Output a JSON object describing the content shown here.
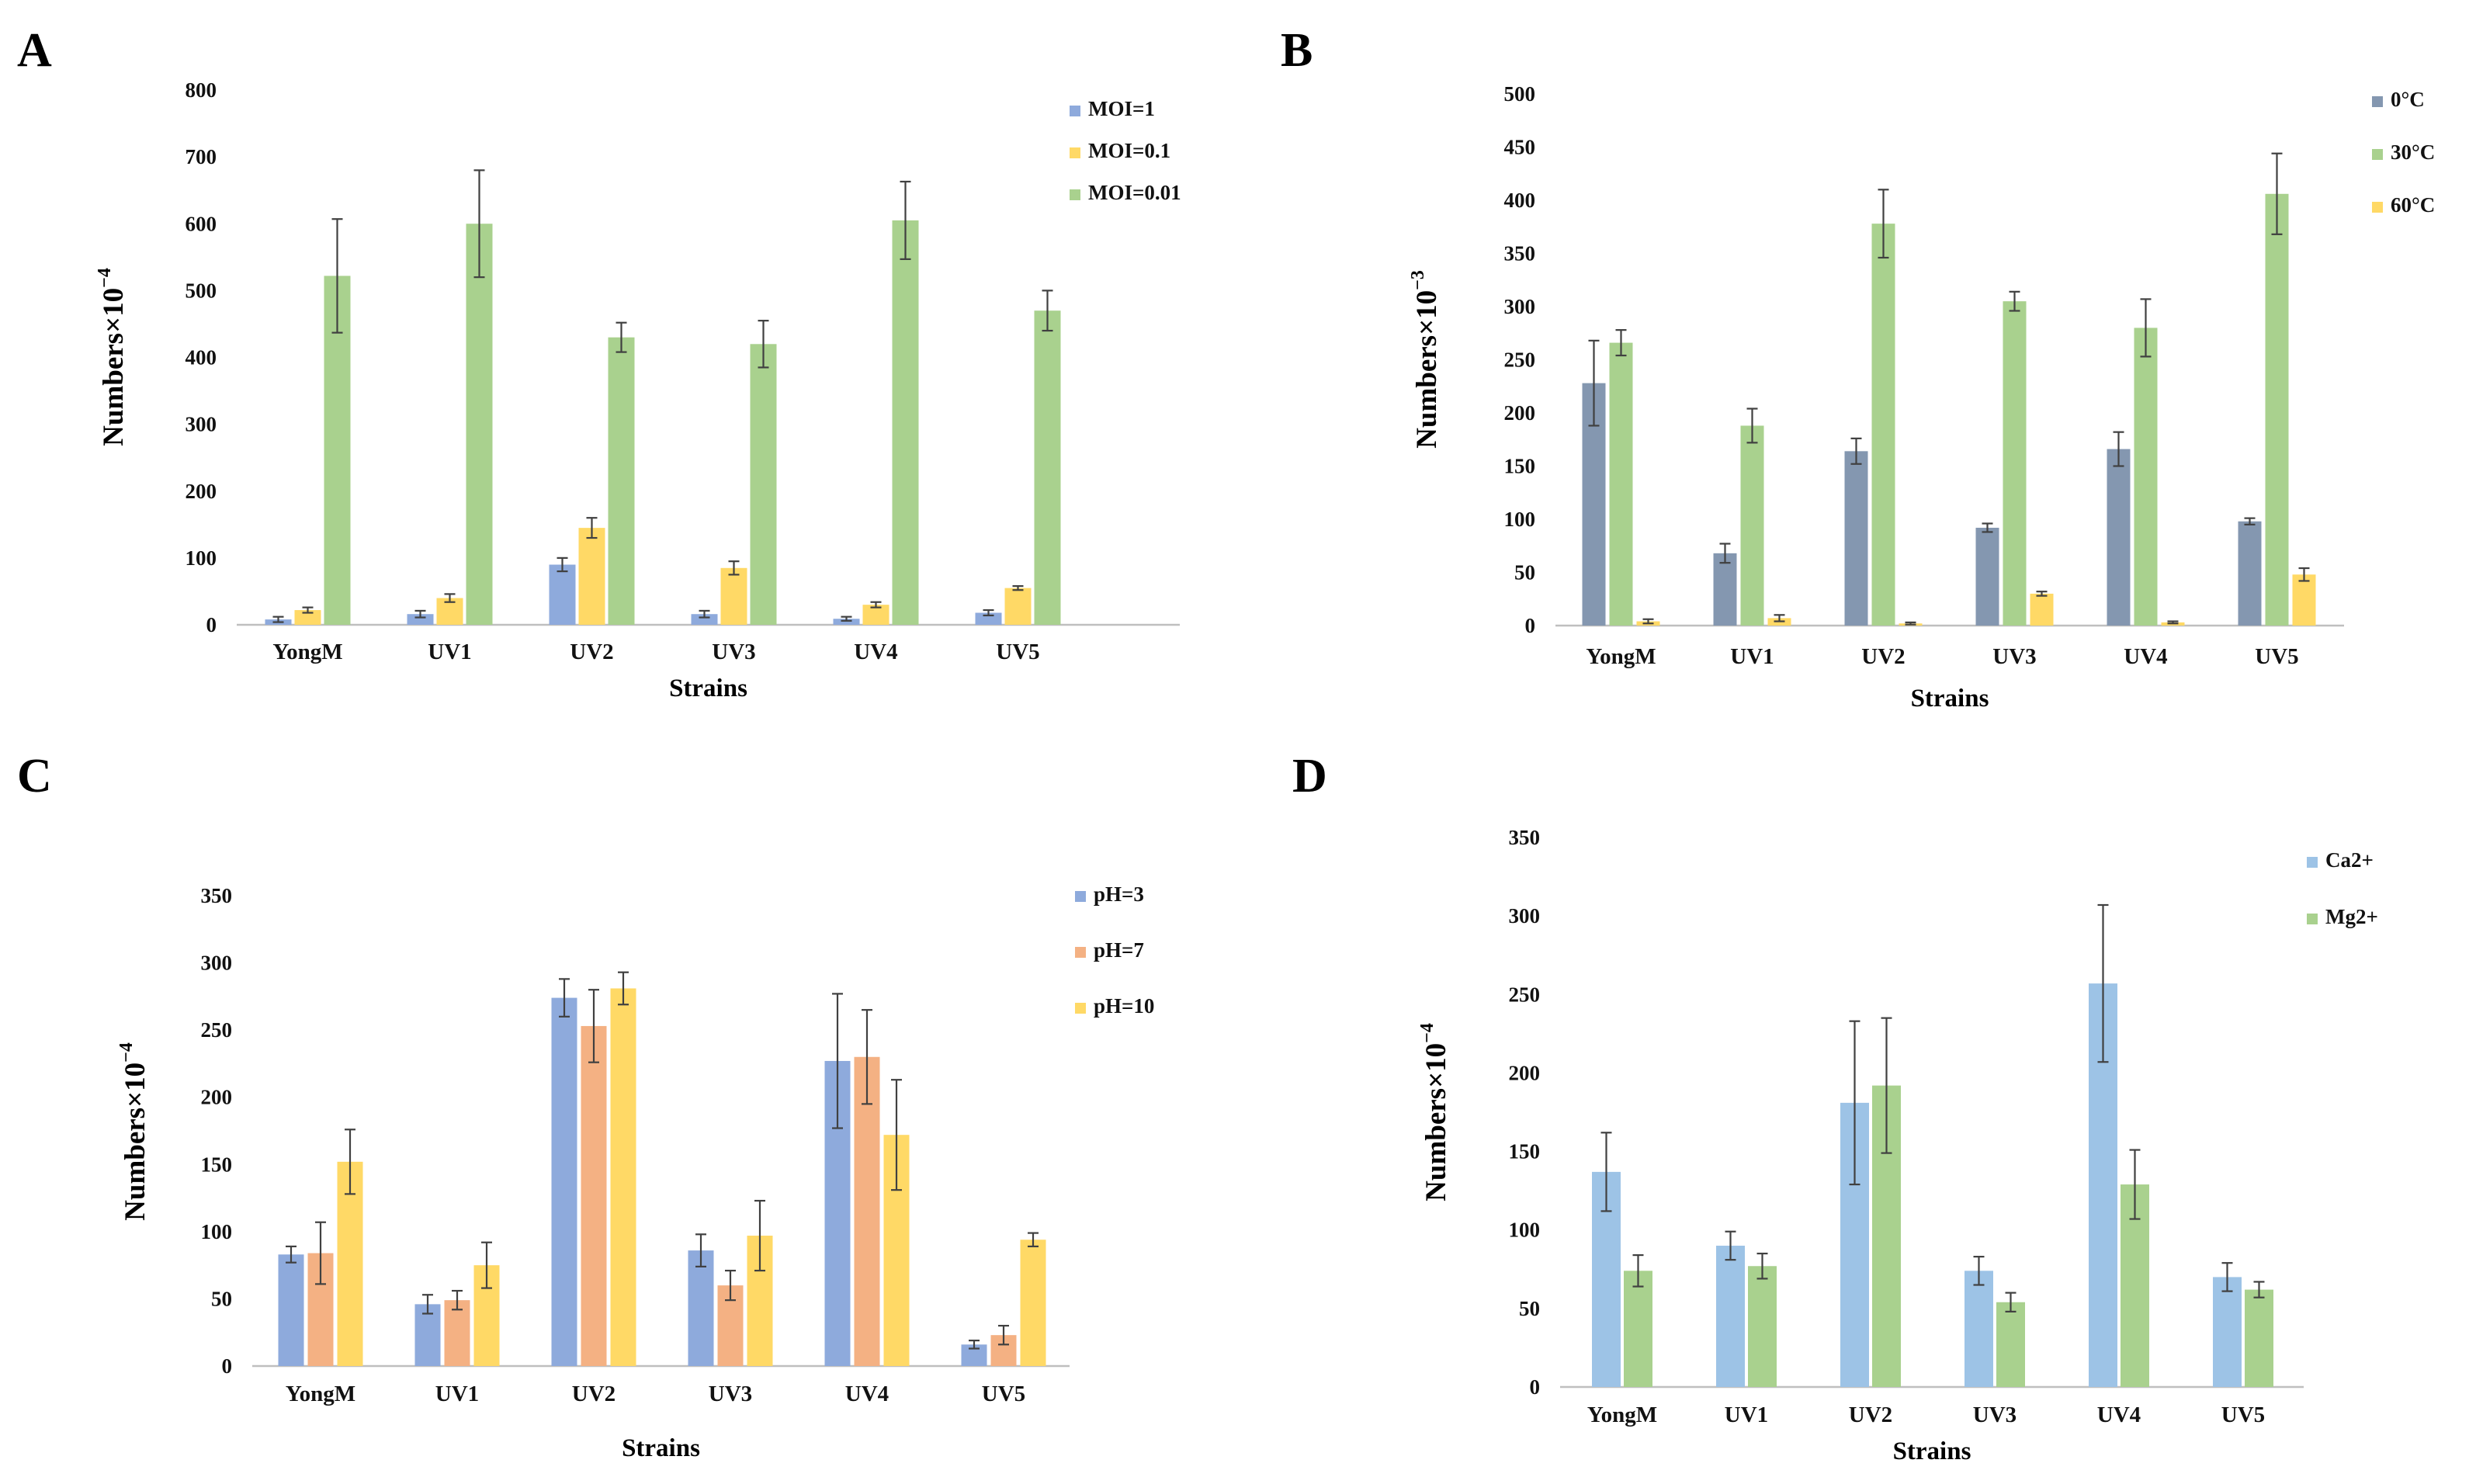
{
  "chart_data": [
    {
      "panel": "A",
      "type": "bar",
      "title": "",
      "xlabel": "Strains",
      "ylabel": "Numbers×10",
      "ylabel_exponent": "−4",
      "ylim": [
        0,
        800
      ],
      "yticks": [
        0,
        100,
        200,
        300,
        400,
        500,
        600,
        700,
        800
      ],
      "categories": [
        "YongM",
        "UV1",
        "UV2",
        "UV3",
        "UV4",
        "UV5"
      ],
      "series": [
        {
          "name": "MOI=1",
          "color": "#8EAADC",
          "values": [
            8,
            16,
            90,
            16,
            9,
            18
          ],
          "errors": [
            4,
            5,
            10,
            5,
            3,
            4
          ]
        },
        {
          "name": "MOI=0.1",
          "color": "#FFD966",
          "values": [
            22,
            40,
            145,
            85,
            30,
            55
          ],
          "errors": [
            4,
            6,
            15,
            10,
            4,
            3
          ]
        },
        {
          "name": "MOI=0.01",
          "color": "#A9D18E",
          "values": [
            522,
            600,
            430,
            420,
            605,
            470
          ],
          "errors": [
            85,
            80,
            22,
            35,
            58,
            30
          ]
        }
      ],
      "legend": "right"
    },
    {
      "panel": "B",
      "type": "bar",
      "title": "",
      "xlabel": "Strains",
      "ylabel": "Numbers×10",
      "ylabel_exponent": "−3",
      "ylim": [
        0,
        500
      ],
      "yticks": [
        0,
        50,
        100,
        150,
        200,
        250,
        300,
        350,
        400,
        450,
        500
      ],
      "categories": [
        "YongM",
        "UV1",
        "UV2",
        "UV3",
        "UV4",
        "UV5"
      ],
      "series": [
        {
          "name": "0°C",
          "color": "#8497B0",
          "values": [
            228,
            68,
            164,
            92,
            166,
            98
          ],
          "errors": [
            40,
            9,
            12,
            4,
            16,
            3
          ]
        },
        {
          "name": "30°C",
          "color": "#A9D18E",
          "values": [
            266,
            188,
            378,
            305,
            280,
            406
          ],
          "errors": [
            12,
            16,
            32,
            9,
            27,
            38
          ]
        },
        {
          "name": "60°C",
          "color": "#FFD966",
          "values": [
            4,
            7,
            2,
            30,
            3,
            48
          ],
          "errors": [
            2,
            3,
            1,
            2,
            1,
            6
          ]
        }
      ],
      "legend": "right"
    },
    {
      "panel": "C",
      "type": "bar",
      "title": "",
      "xlabel": "Strains",
      "ylabel": "Numbers×10",
      "ylabel_exponent": "−4",
      "ylim": [
        0,
        350
      ],
      "yticks": [
        0,
        50,
        100,
        150,
        200,
        250,
        300,
        350
      ],
      "categories": [
        "YongM",
        "UV1",
        "UV2",
        "UV3",
        "UV4",
        "UV5"
      ],
      "series": [
        {
          "name": "pH=3",
          "color": "#8EAADC",
          "values": [
            83,
            46,
            274,
            86,
            227,
            16
          ],
          "errors": [
            6,
            7,
            14,
            12,
            50,
            3
          ]
        },
        {
          "name": "pH=7",
          "color": "#F4B183",
          "values": [
            84,
            49,
            253,
            60,
            230,
            23
          ],
          "errors": [
            23,
            7,
            27,
            11,
            35,
            7
          ]
        },
        {
          "name": "pH=10",
          "color": "#FFD966",
          "values": [
            152,
            75,
            281,
            97,
            172,
            94
          ],
          "errors": [
            24,
            17,
            12,
            26,
            41,
            5
          ]
        }
      ],
      "legend": "right"
    },
    {
      "panel": "D",
      "type": "bar",
      "title": "",
      "xlabel": "Strains",
      "ylabel": "Numbers×10",
      "ylabel_exponent": "−4",
      "ylim": [
        0,
        350
      ],
      "yticks": [
        0,
        50,
        100,
        150,
        200,
        250,
        300,
        350
      ],
      "categories": [
        "YongM",
        "UV1",
        "UV2",
        "UV3",
        "UV4",
        "UV5"
      ],
      "series": [
        {
          "name": "Ca2+",
          "color": "#9DC3E6",
          "values": [
            137,
            90,
            181,
            74,
            257,
            70
          ],
          "errors": [
            25,
            9,
            52,
            9,
            50,
            9
          ]
        },
        {
          "name": "Mg2+",
          "color": "#A9D18E",
          "values": [
            74,
            77,
            192,
            54,
            129,
            62
          ],
          "errors": [
            10,
            8,
            43,
            6,
            22,
            5
          ]
        }
      ],
      "legend": "right"
    }
  ]
}
